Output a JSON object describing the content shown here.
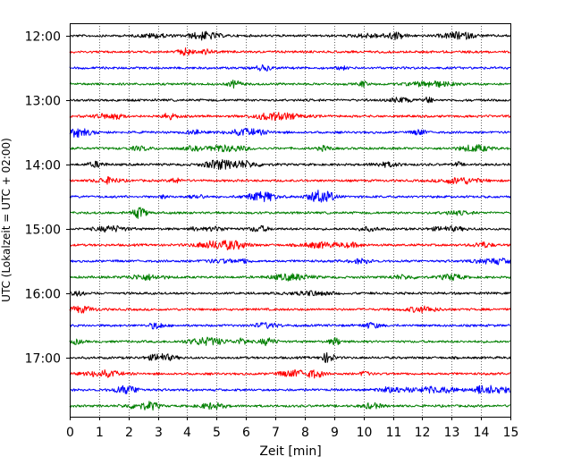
{
  "chart_data": {
    "type": "line",
    "title": "",
    "xlabel": "Zeit  [min]",
    "ylabel": "UTC (Lokalzeit = UTC + 02:00)",
    "xlim": [
      0,
      15
    ],
    "x_ticks": [
      "0",
      "1",
      "2",
      "3",
      "4",
      "5",
      "6",
      "7",
      "8",
      "9",
      "10",
      "11",
      "12",
      "13",
      "14",
      "15"
    ],
    "y_ticks": [
      "12:00",
      "13:00",
      "14:00",
      "15:00",
      "16:00",
      "17:00"
    ],
    "grid": "vertical dotted",
    "trace_interval_minutes": 15,
    "first_trace": "12:00",
    "last_trace": "17:45",
    "trace_count": 24,
    "trace_colors": [
      "#000000",
      "#ff0000",
      "#0000ff",
      "#007f00"
    ]
  }
}
